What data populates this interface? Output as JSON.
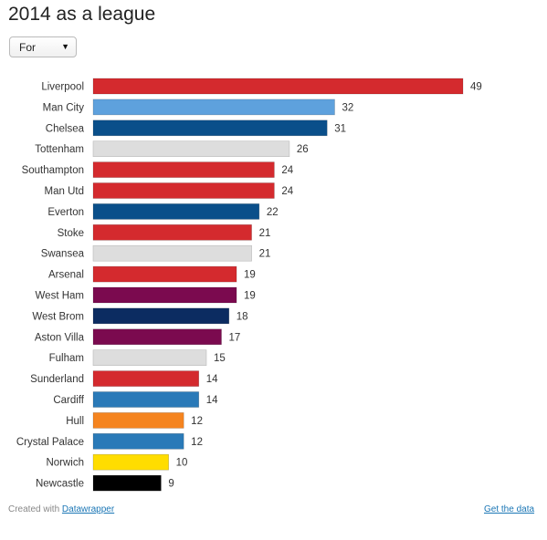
{
  "title": "2014 as a league",
  "selector": {
    "selected": "For",
    "arrow_icon": "triangle-down"
  },
  "chart_data": {
    "type": "bar",
    "orientation": "horizontal",
    "title": "2014 as a league",
    "xlabel": "",
    "ylabel": "",
    "xlim": [
      0,
      49
    ],
    "grid": false,
    "categories": [
      "Liverpool",
      "Man City",
      "Chelsea",
      "Tottenham",
      "Southampton",
      "Man Utd",
      "Everton",
      "Stoke",
      "Swansea",
      "Arsenal",
      "West Ham",
      "West Brom",
      "Aston Villa",
      "Fulham",
      "Sunderland",
      "Cardiff",
      "Hull",
      "Crystal Palace",
      "Norwich",
      "Newcastle"
    ],
    "values": [
      49,
      32,
      31,
      26,
      24,
      24,
      22,
      21,
      21,
      19,
      19,
      18,
      17,
      15,
      14,
      14,
      12,
      12,
      10,
      9
    ],
    "colors": [
      "#d42a2e",
      "#5ea1dd",
      "#0a4f8a",
      "#dddddd",
      "#d42a2e",
      "#d42a2e",
      "#0a4f8a",
      "#d42a2e",
      "#dddddd",
      "#d42a2e",
      "#7b0a4f",
      "#0c2c61",
      "#7b0a4f",
      "#dddddd",
      "#d42a2e",
      "#2a7ab8",
      "#f5841f",
      "#2a7ab8",
      "#ffdd00",
      "#000000"
    ]
  },
  "footer": {
    "credit_prefix": "Created with",
    "credit_link": "Datawrapper",
    "data_link": "Get the data"
  }
}
